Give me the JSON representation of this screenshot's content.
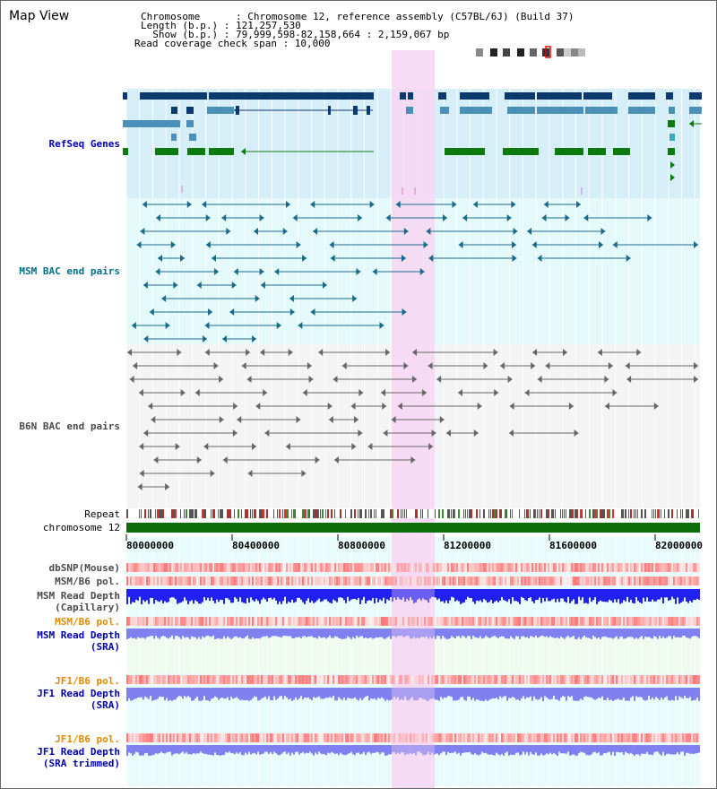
{
  "title": "Map View",
  "header": {
    "chromosome_label": "Chromosome      : Chromosome 12, reference assembly (C57BL/6J) (Build 37)",
    "length_label": "Length (b.p.) : 121,257,530",
    "show_label": "  Show (b.p.) : 79,999,598-82,158,664 : 2,159,067 bp",
    "coverage_label": "Read coverage check span : 10,000"
  },
  "tracks": {
    "refseq": "RefSeq Genes",
    "msm_bac": "MSM BAC end pairs",
    "b6n_bac": "B6N BAC end pairs",
    "repeat": "Repeat",
    "chromosome": "chromosome 12"
  },
  "axis_ticks": [
    "80000000",
    "80400000",
    "80800000",
    "81200000",
    "81600000",
    "82000000"
  ],
  "lower_tracks": {
    "dbsnp": "dbSNP(Mouse)",
    "msm_b6_pol_1": "MSM/B6 pol.",
    "msm_depth_cap_1": "MSM Read Depth",
    "msm_depth_cap_2": "(Capillary)",
    "msm_b6_pol_2": "MSM/B6 pol.",
    "msm_depth_sra_1": "MSM Read Depth",
    "msm_depth_sra_2": "(SRA)",
    "jf1_b6_pol_1": "JF1/B6 pol.",
    "jf1_depth_1": "JF1 Read Depth",
    "jf1_depth_2": "(SRA)",
    "jf1_b6_pol_2": "JF1/B6 pol.",
    "jf1_depth_trim_1": "JF1 Read Depth",
    "jf1_depth_trim_2": "(SRA trimmed)"
  },
  "colors": {
    "refseq_bg": "#d6eef8",
    "msm_bg": "#e4fafa",
    "b6n_bg": "#f4f4f4",
    "lower_bg": "#e8fcfc",
    "highlight": "#f7d6f3",
    "gene_dark": "#0d3a6e",
    "gene_mid": "#4a90b8",
    "gene_green": "#0d7a0d",
    "msm_line": "#1a6a8a",
    "b6n_line": "#666666",
    "chrom": "#0a6e0a",
    "depth_blue": "#2020f0",
    "depth_light": "#8080f0"
  }
}
